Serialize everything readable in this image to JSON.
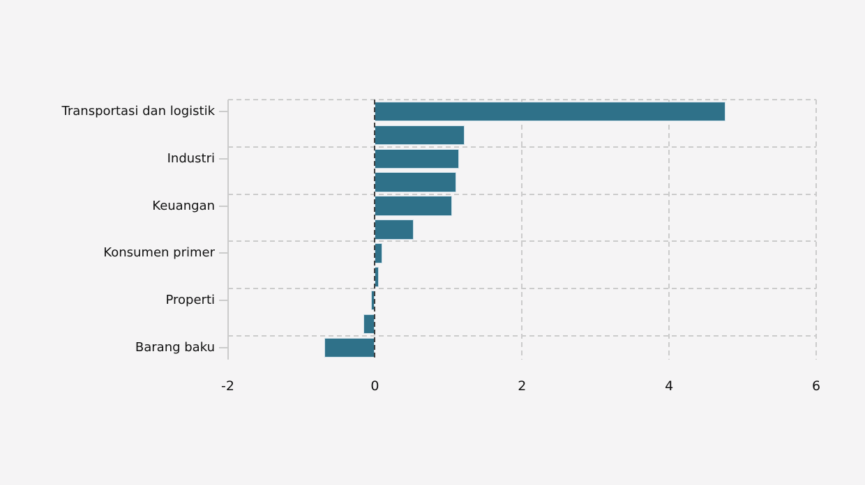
{
  "page": {
    "background_color": "#f5f4f5"
  },
  "chart_data": {
    "type": "bar",
    "orientation": "horizontal",
    "title": "",
    "xlabel": "",
    "ylabel": "",
    "legend_position": "none",
    "grid": "dashed",
    "xlim": [
      -2,
      6
    ],
    "xticks": [
      {
        "value": -2,
        "label": "-2"
      },
      {
        "value": 0,
        "label": "0"
      },
      {
        "value": 2,
        "label": "2"
      },
      {
        "value": 4,
        "label": "4"
      },
      {
        "value": 6,
        "label": "6"
      }
    ],
    "ytick_labels": [
      "Transportasi dan logistik",
      "Industri",
      "Keuangan",
      "Konsumen primer",
      "Properti",
      "Barang baku"
    ],
    "bars": [
      {
        "label": "Transportasi dan logistik",
        "value": 4.77
      },
      {
        "label": "",
        "value": 1.22
      },
      {
        "label": "Industri",
        "value": 1.14
      },
      {
        "label": "",
        "value": 1.11
      },
      {
        "label": "Keuangan",
        "value": 1.05
      },
      {
        "label": "",
        "value": 0.53
      },
      {
        "label": "Konsumen primer",
        "value": 0.1
      },
      {
        "label": "",
        "value": 0.05
      },
      {
        "label": "Properti",
        "value": -0.05
      },
      {
        "label": "",
        "value": -0.16
      },
      {
        "label": "Barang baku",
        "value": -0.69
      }
    ],
    "zero_line_style": "dashed",
    "colors": {
      "bar_fill": "#2f7189",
      "bar_edge": "#cfe0e9",
      "grid": "#cbcbcb",
      "spine": "#cbcbcb",
      "zero_line": "#3d3d3d",
      "text": "#111111",
      "background": "#f5f4f5"
    }
  }
}
